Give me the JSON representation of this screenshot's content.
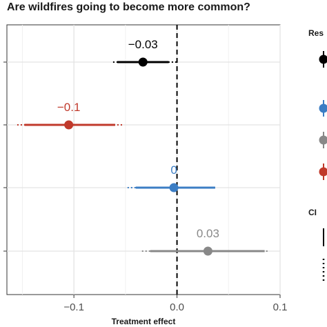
{
  "chart_data": {
    "type": "scatter",
    "title": "Are wildfires going to become more common?",
    "xlabel": "Treatment effect",
    "ylabel": "",
    "xlim": [
      -0.165,
      0.1
    ],
    "x_ticks": [
      {
        "value": -0.1,
        "label": "−0.1"
      },
      {
        "value": 0.0,
        "label": "0.0"
      },
      {
        "value": 0.1,
        "label": "0.1"
      }
    ],
    "reference_line": {
      "x": 0,
      "style": "dashed"
    },
    "grid": true,
    "series": [
      {
        "estimate": -0.033,
        "label": "−0.03",
        "ci95": [
          -0.062,
          0.0
        ],
        "ci90": [
          -0.058,
          -0.008
        ],
        "color": "#000000"
      },
      {
        "estimate": -0.105,
        "label": "−0.1",
        "ci95": [
          -0.155,
          -0.052
        ],
        "ci90": [
          -0.148,
          -0.06
        ],
        "color": "#c0392b"
      },
      {
        "estimate": -0.003,
        "label": "0",
        "ci95": [
          -0.048,
          0.037
        ],
        "ci90": [
          -0.04,
          0.037
        ],
        "color": "#3b7dc4"
      },
      {
        "estimate": 0.03,
        "label": "0.03",
        "ci95": [
          -0.034,
          0.088
        ],
        "ci90": [
          -0.026,
          0.085
        ],
        "color": "#888888"
      }
    ],
    "legend": {
      "position": "right",
      "response_title": "Res",
      "response_colors": [
        "#000000",
        "#3b7dc4",
        "#888888",
        "#c0392b"
      ],
      "ci_title": "CI"
    }
  }
}
